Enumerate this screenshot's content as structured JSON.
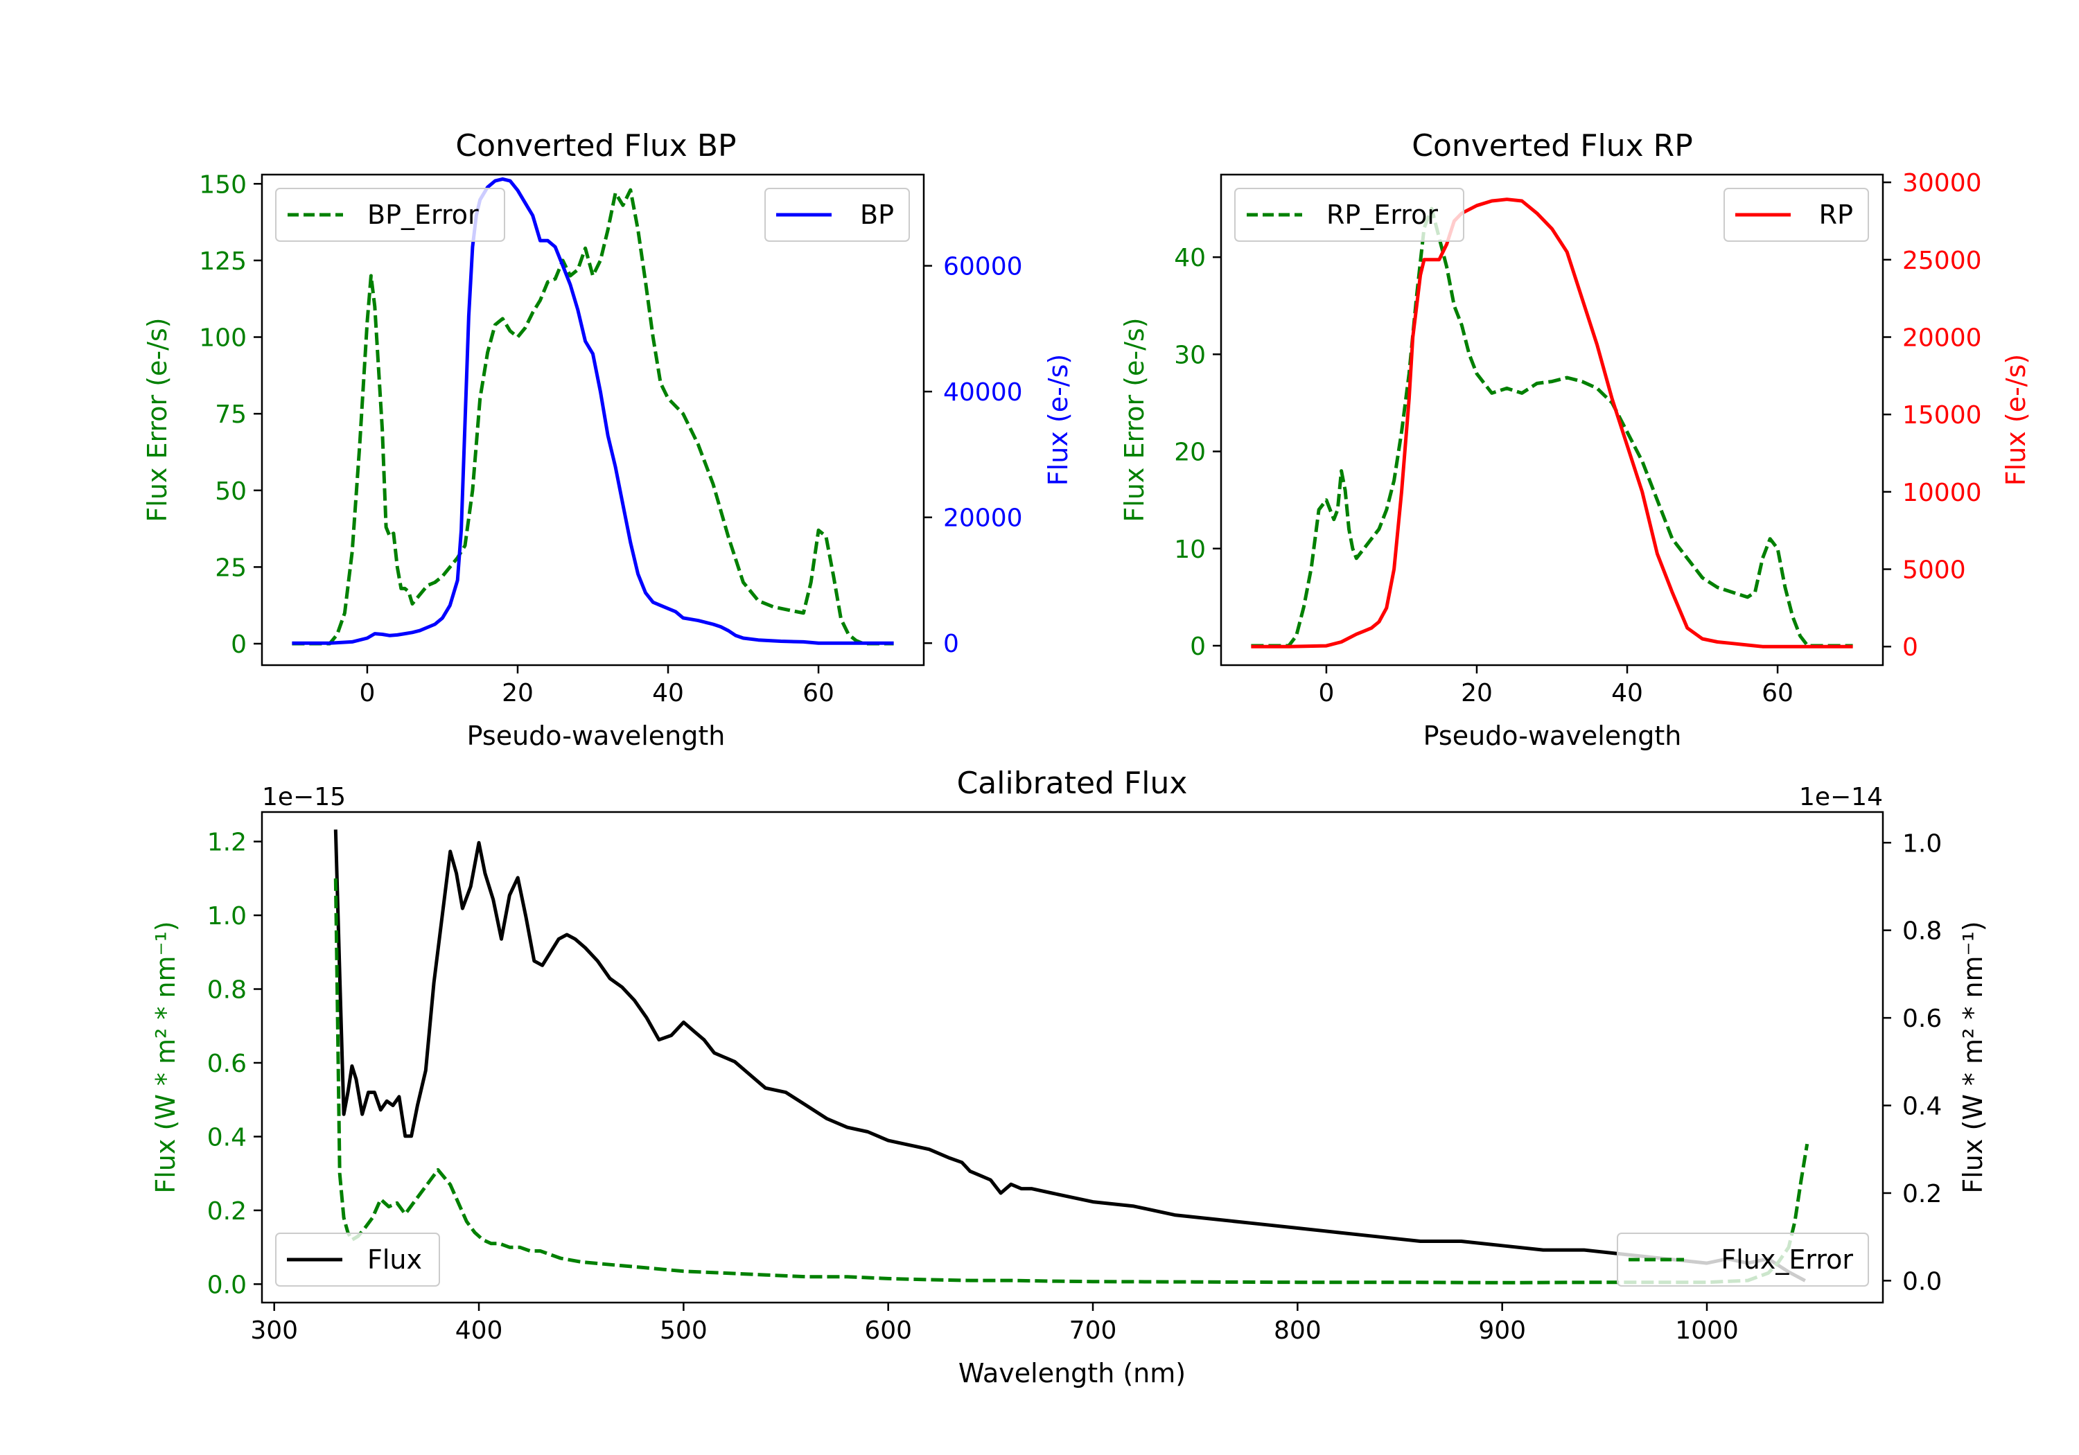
{
  "colors": {
    "green": "#008000",
    "blue": "#0000ff",
    "red": "#ff0000",
    "black": "#000000"
  },
  "chart_data": [
    {
      "type": "line",
      "title": "Converted Flux BP",
      "xlabel": "Pseudo-wavelength",
      "ylabel_left": "Flux Error (e-/s)",
      "ylabel_right": "Flux (e-/s)",
      "xlim": [
        -14,
        74
      ],
      "ylim_left": [
        -7,
        153
      ],
      "ylim_right": [
        -3500,
        74500
      ],
      "xticks": [
        0,
        20,
        40,
        60
      ],
      "xtick_labels": [
        "0",
        "20",
        "40",
        "60"
      ],
      "yticks_left": [
        0,
        25,
        50,
        75,
        100,
        125,
        150
      ],
      "ytick_labels_left": [
        "0",
        "25",
        "50",
        "75",
        "100",
        "125",
        "150"
      ],
      "yticks_right": [
        0,
        20000,
        40000,
        60000
      ],
      "ytick_labels_right": [
        "0",
        "20000",
        "40000",
        "60000"
      ],
      "legend_left": "BP_Error",
      "legend_right": "BP",
      "series": [
        {
          "name": "BP_Error",
          "axis": "left",
          "color": "#008000",
          "style": "dashed",
          "x": [
            -10,
            -5,
            -4,
            -3,
            -2,
            -1,
            0,
            0.5,
            1,
            2,
            2.5,
            3,
            3.5,
            4,
            4.5,
            5,
            5.5,
            6,
            7,
            8,
            9,
            10,
            11,
            12,
            13,
            14,
            15,
            16,
            17,
            18,
            19,
            20,
            21,
            22,
            23,
            24,
            25,
            26,
            27,
            28,
            29,
            30,
            31,
            32,
            33,
            34,
            35,
            36,
            37,
            38,
            39,
            40,
            42,
            44,
            46,
            48,
            50,
            52,
            54,
            56,
            58,
            59,
            60,
            61,
            62,
            63,
            64,
            65,
            66,
            68,
            70
          ],
          "y": [
            0,
            0,
            3,
            10,
            30,
            65,
            105,
            120,
            110,
            70,
            38,
            35,
            36,
            25,
            18,
            18,
            17,
            13,
            16,
            19,
            20,
            22,
            25,
            28,
            32,
            50,
            80,
            95,
            104,
            106,
            102,
            100,
            103,
            108,
            112,
            118,
            119,
            125,
            120,
            122,
            129,
            120,
            125,
            135,
            147,
            143,
            148,
            135,
            118,
            100,
            85,
            80,
            75,
            65,
            52,
            35,
            20,
            14,
            12,
            11,
            10,
            20,
            37,
            35,
            22,
            8,
            3,
            1,
            0,
            0,
            0
          ]
        },
        {
          "name": "BP",
          "axis": "right",
          "color": "#0000ff",
          "style": "solid",
          "x": [
            -10,
            -5,
            -2,
            0,
            1,
            2,
            3,
            4,
            5,
            6,
            7,
            8,
            9,
            10,
            11,
            12,
            12.5,
            13,
            13.5,
            14,
            14.5,
            15,
            16,
            17,
            18,
            19,
            20,
            21,
            22,
            23,
            24,
            25,
            26,
            27,
            28,
            29,
            30,
            31,
            32,
            33,
            34,
            35,
            36,
            37,
            38,
            39,
            40,
            41,
            42,
            43,
            44,
            45,
            46,
            47,
            48,
            49,
            50,
            52,
            55,
            58,
            60,
            62,
            65,
            68,
            70
          ],
          "y": [
            0,
            0,
            200,
            800,
            1500,
            1400,
            1200,
            1300,
            1500,
            1700,
            2000,
            2500,
            3000,
            4000,
            6000,
            10000,
            18000,
            35000,
            52000,
            63000,
            68000,
            70500,
            72500,
            73500,
            73800,
            73500,
            72000,
            70000,
            68000,
            64000,
            64000,
            63000,
            60000,
            57000,
            53000,
            48000,
            46000,
            40000,
            33000,
            28000,
            22000,
            16000,
            11000,
            8000,
            6500,
            6000,
            5500,
            5000,
            4000,
            3800,
            3600,
            3300,
            3000,
            2600,
            2000,
            1200,
            800,
            500,
            300,
            200,
            0,
            0,
            0,
            0,
            0
          ]
        }
      ]
    },
    {
      "type": "line",
      "title": "Converted Flux RP",
      "xlabel": "Pseudo-wavelength",
      "ylabel_left": "Flux Error (e-/s)",
      "ylabel_right": "Flux (e-/s)",
      "xlim": [
        -14,
        74
      ],
      "ylim_left": [
        -2,
        48.5
      ],
      "ylim_right": [
        -1200,
        30500
      ],
      "xticks": [
        0,
        20,
        40,
        60
      ],
      "xtick_labels": [
        "0",
        "20",
        "40",
        "60"
      ],
      "yticks_left": [
        0,
        10,
        20,
        30,
        40
      ],
      "ytick_labels_left": [
        "0",
        "10",
        "20",
        "30",
        "40"
      ],
      "yticks_right": [
        0,
        5000,
        10000,
        15000,
        20000,
        25000,
        30000
      ],
      "ytick_labels_right": [
        "0",
        "5000",
        "10000",
        "15000",
        "20000",
        "25000",
        "30000"
      ],
      "legend_left": "RP_Error",
      "legend_right": "RP",
      "series": [
        {
          "name": "RP_Error",
          "axis": "left",
          "color": "#008000",
          "style": "dashed",
          "x": [
            -10,
            -5,
            -4,
            -3,
            -2,
            -1,
            0,
            1,
            1.5,
            2,
            2.5,
            3,
            3.5,
            4,
            5,
            6,
            7,
            8,
            9,
            10,
            11,
            12,
            13,
            14,
            15,
            16,
            17,
            18,
            19,
            20,
            22,
            24,
            26,
            28,
            30,
            32,
            34,
            36,
            38,
            40,
            42,
            44,
            46,
            48,
            50,
            52,
            54,
            56,
            57,
            58,
            59,
            60,
            61,
            62,
            63,
            64,
            66,
            70
          ],
          "y": [
            0,
            0,
            1,
            4,
            8,
            14,
            15,
            13,
            14,
            18,
            16,
            12,
            10,
            9,
            10,
            11,
            12,
            14,
            17,
            22,
            28,
            36,
            43,
            45,
            42,
            39,
            35,
            33,
            30,
            28,
            26,
            26.5,
            26,
            27,
            27.2,
            27.6,
            27.2,
            26.5,
            25,
            22,
            19,
            15,
            11,
            9,
            7,
            6,
            5.5,
            5,
            5.5,
            9,
            11,
            10,
            6,
            3,
            1,
            0,
            0,
            0
          ]
        },
        {
          "name": "RP",
          "axis": "right",
          "color": "#ff0000",
          "style": "solid",
          "x": [
            -10,
            -5,
            0,
            2,
            4,
            5,
            6,
            7,
            8,
            9,
            10,
            11,
            11.5,
            12,
            12.5,
            13,
            14,
            15,
            16,
            17,
            18,
            20,
            22,
            24,
            26,
            28,
            30,
            32,
            34,
            36,
            38,
            40,
            42,
            44,
            46,
            48,
            50,
            52,
            54,
            56,
            58,
            60,
            62,
            66,
            70
          ],
          "y": [
            0,
            0,
            50,
            300,
            800,
            1000,
            1200,
            1600,
            2500,
            5000,
            10000,
            16000,
            20000,
            22000,
            24000,
            25000,
            25000,
            25000,
            26000,
            27500,
            28000,
            28500,
            28800,
            28900,
            28800,
            28000,
            27000,
            25500,
            22500,
            19500,
            16000,
            13000,
            10000,
            6000,
            3500,
            1200,
            500,
            300,
            200,
            100,
            0,
            0,
            0,
            0,
            0
          ]
        }
      ]
    },
    {
      "type": "line",
      "title": "Calibrated Flux",
      "xlabel": "Wavelength (nm)",
      "ylabel_left": "Flux (W * m² * nm⁻¹)",
      "ylabel_right": "Flux (W * m² * nm⁻¹)",
      "offset_left": "1e−15",
      "offset_right": "1e−14",
      "xlim": [
        294,
        1086
      ],
      "ylim_left": [
        -0.05,
        1.28
      ],
      "ylim_right": [
        -0.05,
        1.07
      ],
      "xticks": [
        300,
        400,
        500,
        600,
        700,
        800,
        900,
        1000
      ],
      "xtick_labels": [
        "300",
        "400",
        "500",
        "600",
        "700",
        "800",
        "900",
        "1000"
      ],
      "yticks_left": [
        0.0,
        0.2,
        0.4,
        0.6,
        0.8,
        1.0,
        1.2
      ],
      "ytick_labels_left": [
        "0.0",
        "0.2",
        "0.4",
        "0.6",
        "0.8",
        "1.0",
        "1.2"
      ],
      "yticks_right": [
        0.0,
        0.2,
        0.4,
        0.6,
        0.8,
        1.0
      ],
      "ytick_labels_right": [
        "0.0",
        "0.2",
        "0.4",
        "0.6",
        "0.8",
        "1.0"
      ],
      "legend_left": "Flux",
      "legend_right": "Flux_Error",
      "series": [
        {
          "name": "Flux",
          "axis": "right",
          "color": "#000000",
          "style": "solid",
          "x": [
            330,
            332,
            334,
            336,
            338,
            340,
            343,
            346,
            349,
            352,
            355,
            358,
            361,
            364,
            367,
            370,
            374,
            378,
            382,
            386,
            389,
            392,
            396,
            400,
            403,
            407,
            411,
            415,
            419,
            423,
            427,
            431,
            435,
            439,
            443,
            447,
            452,
            458,
            464,
            470,
            476,
            482,
            488,
            494,
            500,
            505,
            510,
            515,
            520,
            525,
            530,
            540,
            550,
            560,
            570,
            580,
            590,
            600,
            610,
            620,
            630,
            636,
            640,
            645,
            650,
            655,
            660,
            665,
            670,
            680,
            690,
            700,
            720,
            740,
            760,
            780,
            800,
            820,
            840,
            860,
            880,
            900,
            920,
            940,
            960,
            980,
            1000,
            1010,
            1020,
            1030,
            1040,
            1048
          ],
          "y": [
            1.03,
            0.7,
            0.38,
            0.43,
            0.49,
            0.46,
            0.38,
            0.43,
            0.43,
            0.39,
            0.41,
            0.4,
            0.42,
            0.33,
            0.33,
            0.4,
            0.48,
            0.68,
            0.83,
            0.98,
            0.93,
            0.85,
            0.9,
            1.0,
            0.93,
            0.87,
            0.78,
            0.88,
            0.92,
            0.83,
            0.73,
            0.72,
            0.75,
            0.78,
            0.79,
            0.78,
            0.76,
            0.73,
            0.69,
            0.67,
            0.64,
            0.6,
            0.55,
            0.56,
            0.59,
            0.57,
            0.55,
            0.52,
            0.51,
            0.5,
            0.48,
            0.44,
            0.43,
            0.4,
            0.37,
            0.35,
            0.34,
            0.32,
            0.31,
            0.3,
            0.28,
            0.27,
            0.25,
            0.24,
            0.23,
            0.2,
            0.22,
            0.21,
            0.21,
            0.2,
            0.19,
            0.18,
            0.17,
            0.15,
            0.14,
            0.13,
            0.12,
            0.11,
            0.1,
            0.09,
            0.09,
            0.08,
            0.07,
            0.07,
            0.06,
            0.05,
            0.04,
            0.05,
            0.04,
            0.05,
            0.02,
            0.0
          ]
        },
        {
          "name": "Flux_Error",
          "axis": "left",
          "color": "#008000",
          "style": "dashed",
          "x": [
            330,
            331,
            332,
            334,
            336,
            338,
            341,
            344,
            348,
            352,
            356,
            360,
            364,
            368,
            372,
            376,
            380,
            383,
            386,
            390,
            394,
            398,
            402,
            406,
            410,
            415,
            420,
            425,
            430,
            435,
            440,
            450,
            460,
            470,
            480,
            490,
            500,
            520,
            540,
            560,
            580,
            600,
            620,
            640,
            660,
            680,
            700,
            750,
            800,
            850,
            900,
            950,
            1000,
            1020,
            1030,
            1035,
            1040,
            1043,
            1046,
            1049
          ],
          "y": [
            1.1,
            0.7,
            0.3,
            0.18,
            0.14,
            0.12,
            0.13,
            0.15,
            0.18,
            0.23,
            0.21,
            0.22,
            0.19,
            0.22,
            0.25,
            0.28,
            0.31,
            0.29,
            0.27,
            0.22,
            0.17,
            0.14,
            0.12,
            0.11,
            0.11,
            0.1,
            0.1,
            0.09,
            0.09,
            0.08,
            0.07,
            0.06,
            0.055,
            0.05,
            0.045,
            0.04,
            0.035,
            0.03,
            0.025,
            0.02,
            0.02,
            0.015,
            0.012,
            0.01,
            0.01,
            0.008,
            0.007,
            0.006,
            0.005,
            0.005,
            0.004,
            0.005,
            0.005,
            0.01,
            0.03,
            0.06,
            0.1,
            0.17,
            0.28,
            0.38
          ]
        }
      ]
    }
  ]
}
